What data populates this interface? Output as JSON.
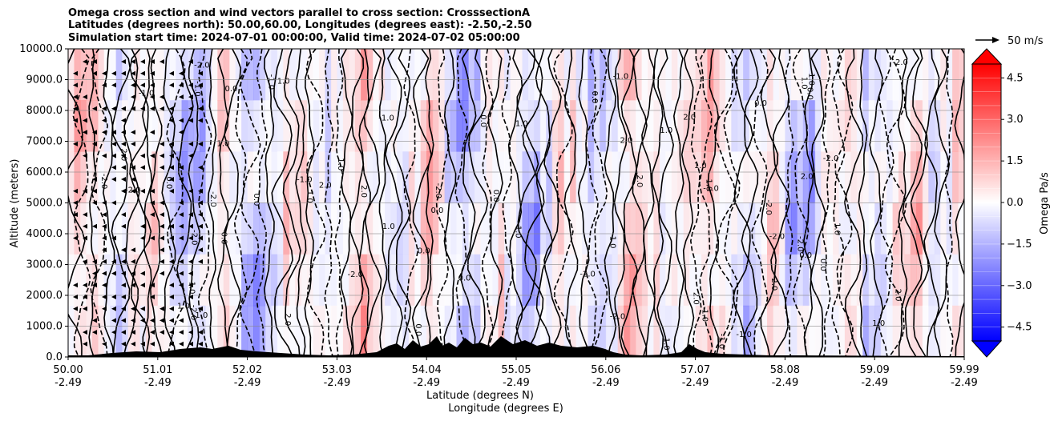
{
  "chart_data": {
    "type": "heatmap",
    "title_lines": [
      "Omega cross section and wind vectors parallel to cross section: CrosssectionA",
      "Latitudes (degrees north): 50.00,60.00, Longitudes (degrees east): -2.50,-2.50",
      "Simulation start time: 2024-07-01 00:00:00, Valid time: 2024-07-02 05:00:00"
    ],
    "ylabel": "Altitude (meters)",
    "xlabel_lat": "Latitude (degrees N)",
    "xlabel_lon": "Longitude (degrees E)",
    "ylim": [
      0,
      10000
    ],
    "yticks": [
      "0.0",
      "1000.0",
      "2000.0",
      "3000.0",
      "4000.0",
      "5000.0",
      "6000.0",
      "7000.0",
      "8000.0",
      "9000.0",
      "10000.0"
    ],
    "xlim_lat": [
      50.0,
      59.99
    ],
    "xticks_lat": [
      "50.00",
      "51.01",
      "52.02",
      "53.03",
      "54.04",
      "55.05",
      "56.06",
      "57.07",
      "58.08",
      "59.09",
      "59.99"
    ],
    "xticks_lon": [
      "-2.49",
      "-2.49",
      "-2.49",
      "-2.49",
      "-2.49",
      "-2.49",
      "-2.49",
      "-2.49",
      "-2.49",
      "-2.49",
      "-2.49"
    ],
    "colorbar": {
      "label": "Omega Pa/s",
      "range": [
        -5.0,
        5.0
      ],
      "ticks": [
        "4.5",
        "3.0",
        "1.5",
        "0.0",
        "−1.5",
        "−3.0",
        "−4.5"
      ],
      "tick_values": [
        4.5,
        3.0,
        1.5,
        0.0,
        -1.5,
        -3.0,
        -4.5
      ],
      "extend": "both",
      "cmap": "bwr"
    },
    "quiver_key": "50 m/s",
    "contour_labels": [
      "0.0",
      "1.0",
      "-1.0",
      "2.0",
      "-2.0"
    ]
  }
}
